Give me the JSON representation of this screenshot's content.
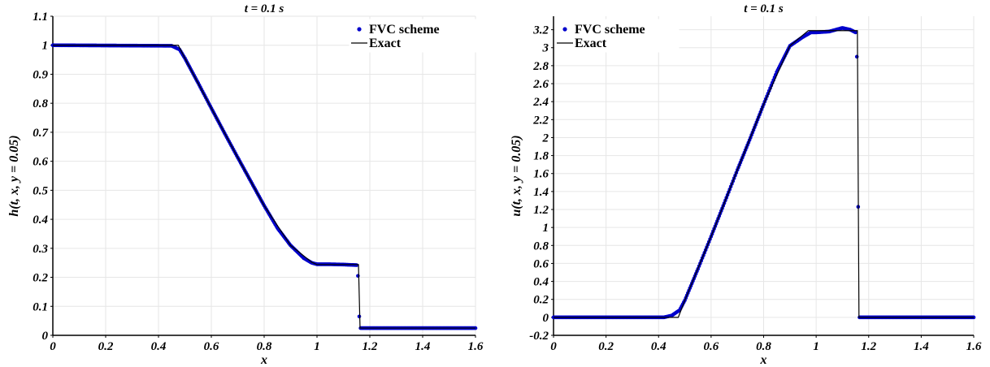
{
  "chart_data": [
    {
      "type": "line",
      "title": "t = 0.1 s",
      "xlabel": "x",
      "ylabel": "h(t, x, y = 0.05)",
      "xlim": [
        0,
        1.6
      ],
      "ylim": [
        0,
        1.1
      ],
      "xticks": [
        "0",
        "0.2",
        "0.4",
        "0.6",
        "0.8",
        "1",
        "1.2",
        "1.4",
        "1.6"
      ],
      "yticks": [
        "0",
        "0.1",
        "0.2",
        "0.3",
        "0.4",
        "0.5",
        "0.6",
        "0.7",
        "0.8",
        "0.9",
        "1",
        "1.1"
      ],
      "grid": true,
      "legend_position": "top-right",
      "series": [
        {
          "name": "FVC scheme",
          "style": "markers",
          "color": "#0000cc",
          "x": [
            0,
            0.45,
            0.48,
            0.5,
            0.55,
            0.6,
            0.65,
            0.7,
            0.75,
            0.8,
            0.85,
            0.9,
            0.95,
            0.98,
            1.0,
            1.05,
            1.1,
            1.15,
            1.155,
            1.16,
            1.165,
            1.2,
            1.4,
            1.6
          ],
          "y": [
            1.0,
            0.998,
            0.985,
            0.955,
            0.87,
            0.783,
            0.697,
            0.613,
            0.53,
            0.447,
            0.37,
            0.31,
            0.266,
            0.25,
            0.245,
            0.245,
            0.244,
            0.242,
            0.205,
            0.065,
            0.025,
            0.025,
            0.025,
            0.025
          ]
        },
        {
          "name": "Exact",
          "style": "line",
          "color": "#000000",
          "x": [
            0,
            0.475,
            0.5,
            0.6,
            0.7,
            0.8,
            0.9,
            0.98,
            1.0,
            1.157,
            1.163,
            1.6
          ],
          "y": [
            1.0,
            1.0,
            0.955,
            0.783,
            0.613,
            0.447,
            0.31,
            0.252,
            0.244,
            0.244,
            0.025,
            0.025
          ]
        }
      ]
    },
    {
      "type": "line",
      "title": "t = 0.1 s",
      "xlabel": "x",
      "ylabel": "u(t, x, y = 0.05)",
      "xlim": [
        0,
        1.6
      ],
      "ylim": [
        -0.2,
        3.35
      ],
      "xticks": [
        "0",
        "0.2",
        "0.4",
        "0.6",
        "0.8",
        "1",
        "1.2",
        "1.4",
        "1.6"
      ],
      "yticks": [
        "-0.2",
        "0",
        "0.2",
        "0.4",
        "0.6",
        "0.8",
        "1",
        "1.2",
        "1.4",
        "1.6",
        "1.8",
        "2",
        "2.2",
        "2.4",
        "2.6",
        "2.8",
        "3",
        "3.2"
      ],
      "grid": true,
      "legend_position": "top-left",
      "series": [
        {
          "name": "FVC scheme",
          "style": "markers",
          "color": "#0000cc",
          "x": [
            0,
            0.42,
            0.45,
            0.48,
            0.5,
            0.55,
            0.6,
            0.65,
            0.7,
            0.75,
            0.8,
            0.85,
            0.9,
            0.95,
            0.98,
            1.0,
            1.05,
            1.1,
            1.13,
            1.15,
            1.155,
            1.16,
            1.165,
            1.2,
            1.4,
            1.6
          ],
          "y": [
            0,
            0.0,
            0.02,
            0.08,
            0.19,
            0.54,
            0.9,
            1.27,
            1.64,
            2.0,
            2.37,
            2.73,
            3.02,
            3.12,
            3.17,
            3.17,
            3.18,
            3.22,
            3.2,
            3.17,
            2.9,
            1.23,
            0,
            0,
            0,
            0
          ]
        },
        {
          "name": "Exact",
          "style": "line",
          "color": "#000000",
          "x": [
            0,
            0.475,
            0.5,
            0.6,
            0.7,
            0.8,
            0.9,
            0.97,
            1.0,
            1.157,
            1.163,
            1.6
          ],
          "y": [
            0,
            0,
            0.19,
            0.9,
            1.64,
            2.37,
            3.02,
            3.19,
            3.19,
            3.19,
            0,
            0
          ]
        }
      ]
    }
  ]
}
